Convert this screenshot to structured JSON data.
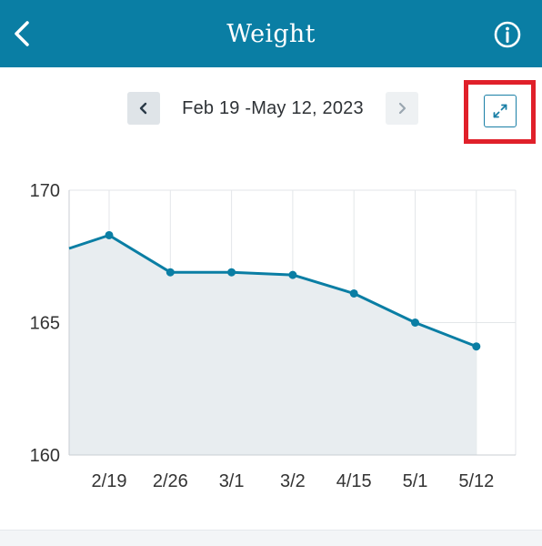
{
  "header": {
    "title": "Weight",
    "back_icon": "chevron-left-icon",
    "info_icon": "info-circle-icon",
    "color": "#0a7ea4"
  },
  "range": {
    "label": "Feb 19 -May 12, 2023",
    "prev_icon": "chevron-left-icon",
    "next_icon": "chevron-right-icon",
    "expand_icon": "expand-arrows-icon"
  },
  "highlight_color": "#e0202a",
  "chart_data": {
    "type": "area",
    "categories": [
      "2/19",
      "2/26",
      "3/1",
      "3/2",
      "4/15",
      "5/1",
      "5/12"
    ],
    "values": [
      168.3,
      166.9,
      166.9,
      166.8,
      166.1,
      165.0,
      164.1
    ],
    "leading_value": 167.8,
    "ylim": [
      160,
      170
    ],
    "yticks": [
      160,
      165,
      170
    ],
    "grid": true,
    "line_color": "#0a7ea4",
    "fill_color": "#e8edf0"
  }
}
